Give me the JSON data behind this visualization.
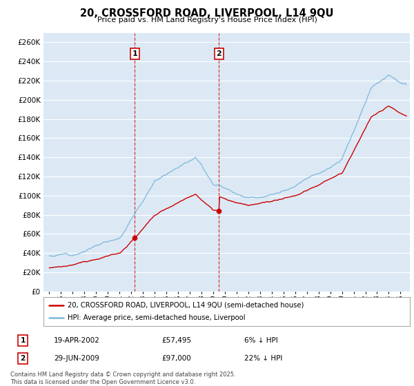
{
  "title": "20, CROSSFORD ROAD, LIVERPOOL, L14 9QU",
  "subtitle": "Price paid vs. HM Land Registry's House Price Index (HPI)",
  "hpi_color": "#7ab8d9",
  "price_color": "#cc0000",
  "annotation_color": "#cc0000",
  "background_color": "#dce9f5",
  "grid_color": "#ffffff",
  "ylim": [
    0,
    270000
  ],
  "yticks": [
    0,
    20000,
    40000,
    60000,
    80000,
    100000,
    120000,
    140000,
    160000,
    180000,
    200000,
    220000,
    240000,
    260000
  ],
  "sale1_year": 2002.29,
  "sale1_price": 57495,
  "sale2_year": 2009.49,
  "sale2_price": 97000,
  "legend_line1": "20, CROSSFORD ROAD, LIVERPOOL, L14 9QU (semi-detached house)",
  "legend_line2": "HPI: Average price, semi-detached house, Liverpool",
  "footer": "Contains HM Land Registry data © Crown copyright and database right 2025.\nThis data is licensed under the Open Government Licence v3.0.",
  "table_rows": [
    {
      "label": "1",
      "date": "19-APR-2002",
      "price": "£57,495",
      "change": "6% ↓ HPI"
    },
    {
      "label": "2",
      "date": "29-JUN-2009",
      "price": "£97,000",
      "change": "22% ↓ HPI"
    }
  ]
}
